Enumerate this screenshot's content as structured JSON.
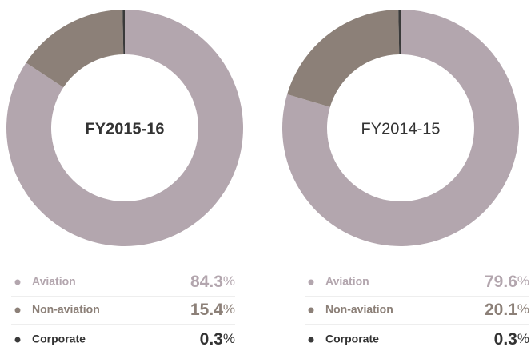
{
  "chart_data": [
    {
      "type": "pie",
      "title": "FY2015-16",
      "categories": [
        "Aviation",
        "Non-aviation",
        "Corporate"
      ],
      "values": [
        84.3,
        15.4,
        0.3
      ],
      "unit": "%",
      "colors": [
        "#b3a6ae",
        "#8c8078",
        "#3a3a3a"
      ]
    },
    {
      "type": "pie",
      "title": "FY2014-15",
      "categories": [
        "Aviation",
        "Non-aviation",
        "Corporate"
      ],
      "values": [
        79.6,
        20.1,
        0.3
      ],
      "unit": "%",
      "colors": [
        "#b3a6ae",
        "#8c8078",
        "#3a3a3a"
      ]
    }
  ]
}
